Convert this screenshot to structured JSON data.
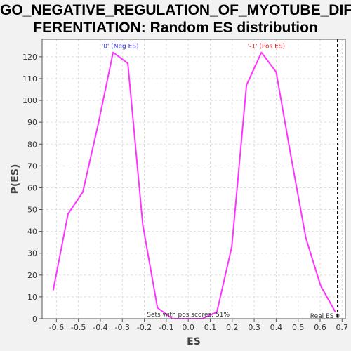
{
  "chart_data": {
    "type": "line",
    "title_lines": [
      "GO_NEGATIVE_REGULATION_OF_MYOTUBE_DIF",
      "FERENTIATION: Random ES distribution"
    ],
    "xlabel": "ES",
    "ylabel": "P(ES)",
    "xlim": [
      -0.665,
      0.715
    ],
    "ylim": [
      0,
      128
    ],
    "x_ticks": [
      -0.6,
      -0.5,
      -0.4,
      -0.3,
      -0.2,
      -0.1,
      0.0,
      0.1,
      0.2,
      0.3,
      0.4,
      0.5,
      0.6,
      0.7
    ],
    "x_tick_labels": [
      "-0.6",
      "-0.5",
      "-0.4",
      "-0.3",
      "-0.2",
      "-0.1",
      "0.0",
      "0.1",
      "0.2",
      "0.3",
      "0.4",
      "0.5",
      "0.6",
      "0.7"
    ],
    "y_ticks": [
      0,
      10,
      20,
      30,
      40,
      50,
      60,
      70,
      80,
      90,
      100,
      110,
      120
    ],
    "y_tick_labels": [
      "0",
      "10",
      "20",
      "30",
      "40",
      "50",
      "60",
      "70",
      "80",
      "90",
      "100",
      "110",
      "120"
    ],
    "grid": true,
    "series": [
      {
        "color": "#ff33ff",
        "x": [
          -0.615,
          -0.547,
          -0.48,
          -0.41,
          -0.342,
          -0.275,
          -0.207,
          -0.14,
          -0.072,
          -0.005,
          0.063,
          0.13,
          0.198,
          0.265,
          0.333,
          0.4,
          0.468,
          0.535,
          0.603,
          0.67
        ],
        "y": [
          13,
          48,
          58,
          89,
          122,
          117,
          43,
          5,
          0,
          0,
          0,
          3,
          33,
          107,
          122,
          113,
          74,
          37,
          15,
          3
        ]
      }
    ],
    "real_es": {
      "x": 0.68,
      "label": "Real ES 0",
      "color": "#000000"
    },
    "annotations": [
      {
        "text": "'0' (Neg ES)",
        "x": -0.31,
        "y": 124,
        "color": "#3333dd"
      },
      {
        "text": "'-1' (Pos ES)",
        "x": 0.355,
        "y": 124,
        "color": "#dd2222"
      },
      {
        "text": "Sets with pos scores: 51%",
        "x": 0.0,
        "y": 1,
        "color": "#333333"
      }
    ]
  }
}
